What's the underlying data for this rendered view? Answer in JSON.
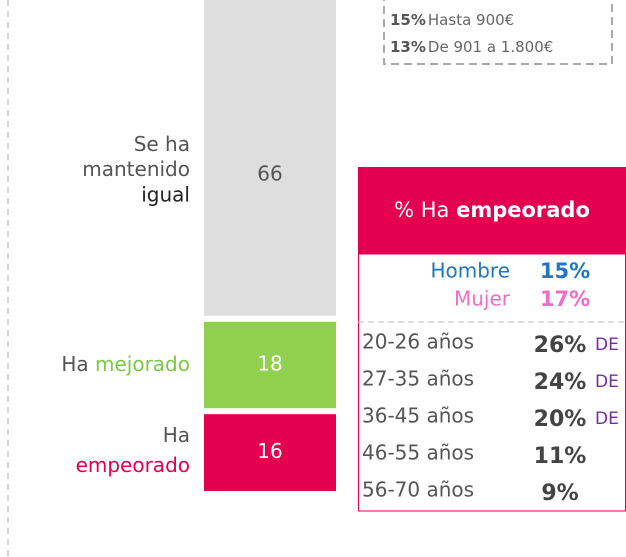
{
  "chart_data": {
    "type": "stacked-bar",
    "categories_prefix": [
      "Se ha mantenido",
      "Ha",
      "Ha"
    ],
    "categories_highlight": [
      "igual",
      "mejorado",
      "empeorado"
    ],
    "values": [
      66,
      18,
      16
    ],
    "colors": [
      "#dedede",
      "#92d050",
      "#e5004f"
    ],
    "highlight_colors": [
      "#222222",
      "#7ac943",
      "#e5004f"
    ],
    "ylim": [
      0,
      100
    ]
  },
  "income_box": {
    "rows": [
      {
        "value": 15,
        "value_label": "15%",
        "label": "Hasta 900€"
      },
      {
        "value": 13,
        "value_label": "13%",
        "label": "De 901 a 1.800€"
      }
    ]
  },
  "panel": {
    "title_prefix": "% Ha",
    "title_highlight": "empeorado",
    "gender": [
      {
        "label": "Hombre",
        "value": 15,
        "value_label": "15%",
        "color": "#1f77c4"
      },
      {
        "label": "Mujer",
        "value": 17,
        "value_label": "17%",
        "color": "#f06cc8"
      }
    ],
    "ages": [
      {
        "label": "20-26 años",
        "value": 26,
        "value_label": "26%",
        "suffix": "DE"
      },
      {
        "label": "27-35 años",
        "value": 24,
        "value_label": "24%",
        "suffix": "DE"
      },
      {
        "label": "36-45 años",
        "value": 20,
        "value_label": "20%",
        "suffix": "DE"
      },
      {
        "label": "46-55 años",
        "value": 11,
        "value_label": "11%"
      },
      {
        "label": "56-70 años",
        "value": 9,
        "value_label": "9%"
      }
    ]
  }
}
